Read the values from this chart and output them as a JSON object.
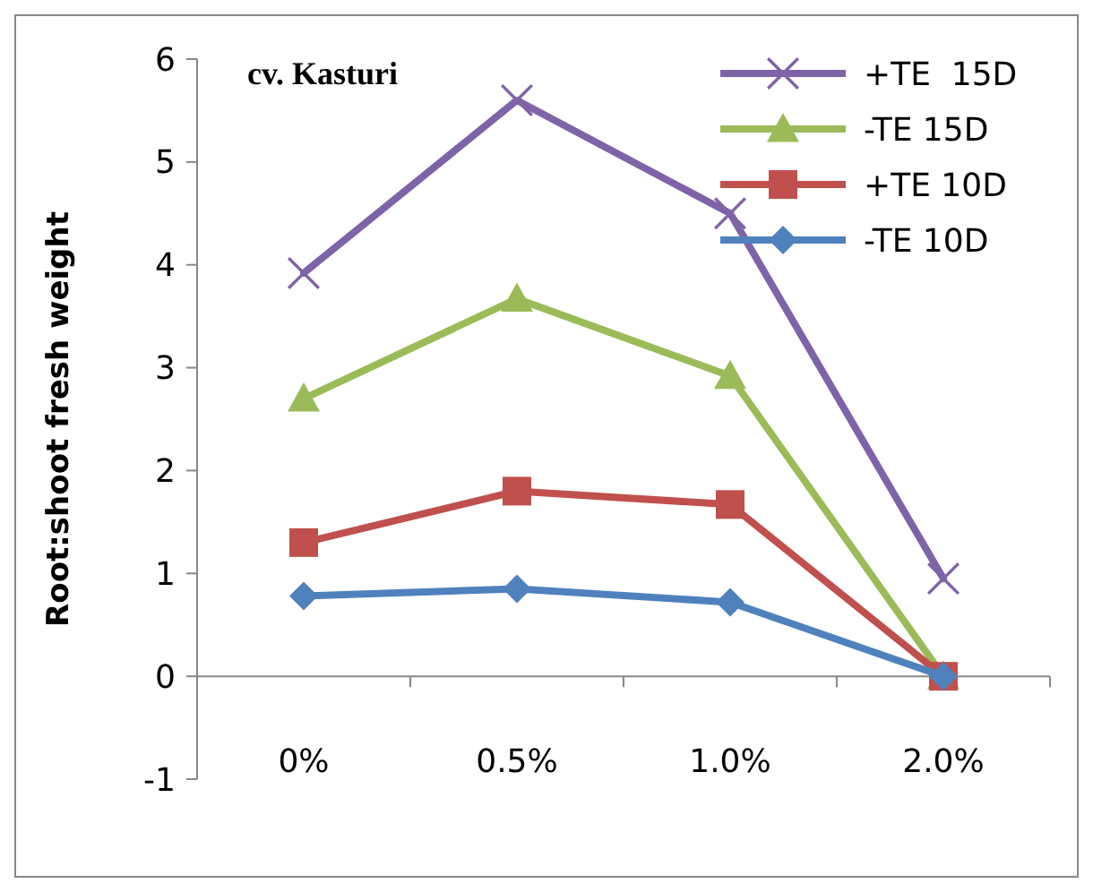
{
  "chart_data": {
    "type": "line",
    "ylabel": "Root:shoot fresh weight",
    "annotations": [
      "cv. Kasturi"
    ],
    "categories": [
      "0%",
      "0.5%",
      "1.0%",
      "2.0%"
    ],
    "ylim": [
      -1,
      6
    ],
    "yticks": [
      -1,
      0,
      1,
      2,
      3,
      4,
      5,
      6
    ],
    "grid": false,
    "legend": "top right",
    "line_style": "solid",
    "series": [
      {
        "name": "+TE  15D",
        "color": "#7f63a8",
        "marker": "cross",
        "values": [
          3.92,
          5.6,
          4.5,
          0.95
        ]
      },
      {
        "name": "-TE 15D",
        "color": "#9bbb59",
        "marker": "triangle",
        "values": [
          2.7,
          3.67,
          2.92,
          0
        ]
      },
      {
        "name": "+TE 10D",
        "color": "#c0504d",
        "marker": "square",
        "values": [
          1.3,
          1.8,
          1.67,
          0
        ]
      },
      {
        "name": "-TE 10D",
        "color": "#4f81bd",
        "marker": "diamond",
        "values": [
          0.78,
          0.85,
          0.72,
          0
        ]
      }
    ]
  }
}
